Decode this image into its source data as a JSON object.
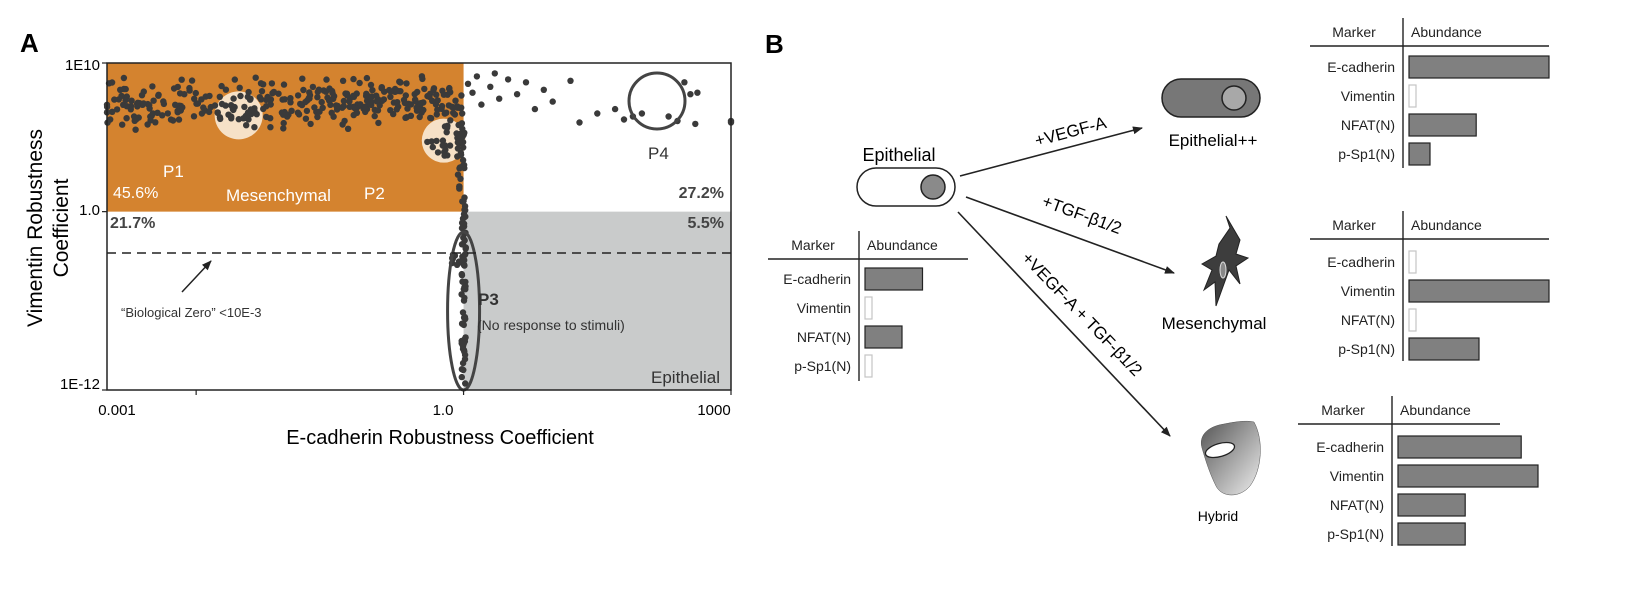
{
  "panel_a": {
    "label": "A",
    "ylabel_line1": "Vimentin Robustness",
    "ylabel_line2": "Coefficient",
    "xlabel": "E-cadherin Robustness Coefficient",
    "y_ticks": [
      "1E10",
      "1.0",
      "1E-12"
    ],
    "x_ticks": [
      "0.001",
      "1.0",
      "1000"
    ],
    "regions": {
      "mesenchymal": {
        "label": "Mesenchymal",
        "percent": "45.6%",
        "color": "#d4832f"
      },
      "epithelial": {
        "label": "Epithelial",
        "percent": "5.5%",
        "color": "#c9cbcb"
      },
      "upper_right_percent": "27.2%",
      "lower_left_percent": "21.7%"
    },
    "populations": {
      "p1": "P1",
      "p2": "P2",
      "p3": "P3",
      "p3_note": "(No response to stimuli)",
      "p4": "P4"
    },
    "bio_zero_label": "“Biological Zero” <10E-3"
  },
  "panel_b": {
    "label": "B",
    "source": {
      "label": "Epithelial",
      "table": {
        "header_marker": "Marker",
        "header_abundance": "Abundance",
        "rows": [
          {
            "marker": "E-cadherin",
            "value": 0.42
          },
          {
            "marker": "Vimentin",
            "value": 0.04
          },
          {
            "marker": "NFAT(N)",
            "value": 0.27
          },
          {
            "marker": "p-Sp1(N)",
            "value": 0.04
          }
        ]
      }
    },
    "branches": [
      {
        "arrow_label": "+VEGF-A",
        "state": "Epithelial++",
        "table": {
          "header_marker": "Marker",
          "header_abundance": "Abundance",
          "rows": [
            {
              "marker": "E-cadherin",
              "value": 1.0
            },
            {
              "marker": "Vimentin",
              "value": 0.04
            },
            {
              "marker": "NFAT(N)",
              "value": 0.48
            },
            {
              "marker": "p-Sp1(N)",
              "value": 0.15
            }
          ]
        }
      },
      {
        "arrow_label": "+TGF-β1/2",
        "state": "Mesenchymal",
        "table": {
          "header_marker": "Marker",
          "header_abundance": "Abundance",
          "rows": [
            {
              "marker": "E-cadherin",
              "value": 0.04
            },
            {
              "marker": "Vimentin",
              "value": 1.0
            },
            {
              "marker": "NFAT(N)",
              "value": 0.04
            },
            {
              "marker": "p-Sp1(N)",
              "value": 0.5
            }
          ]
        }
      },
      {
        "arrow_label": "+VEGF-A + TGF-β1/2",
        "state": "Hybrid",
        "table": {
          "header_marker": "Marker",
          "header_abundance": "Abundance",
          "rows": [
            {
              "marker": "E-cadherin",
              "value": 0.88
            },
            {
              "marker": "Vimentin",
              "value": 1.0
            },
            {
              "marker": "NFAT(N)",
              "value": 0.48
            },
            {
              "marker": "p-Sp1(N)",
              "value": 0.48
            }
          ]
        }
      }
    ]
  },
  "chart_data": [
    {
      "type": "scatter",
      "title": "",
      "xlabel": "E-cadherin Robustness Coefficient",
      "ylabel": "Vimentin Robustness Coefficient",
      "x_scale": "log",
      "y_scale": "log",
      "xlim": [
        0.0001,
        1000
      ],
      "ylim": [
        1e-12,
        10000000000.0
      ],
      "grid": false,
      "region_percentages": {
        "mesenchymal_upper_left": "45.6%",
        "upper_right": "27.2%",
        "lower_left": "21.7%",
        "epithelial_lower_right": "5.5%"
      },
      "series": [
        {
          "name": "P1",
          "points": [
            [
              0.003,
              3000000.0
            ],
            [
              0.0025,
              10000000.0
            ],
            [
              0.004,
              500000.0
            ],
            [
              0.002,
              2000000.0
            ],
            [
              0.005,
              8000000.0
            ]
          ]
        },
        {
          "name": "P2",
          "points": [
            [
              0.5,
              100000.0
            ],
            [
              0.6,
              50000.0
            ],
            [
              0.7,
              200000.0
            ],
            [
              0.8,
              80000.0
            ]
          ]
        },
        {
          "name": "P3",
          "points": [
            [
              1.0,
              0.01
            ],
            [
              1.0,
              0.0001
            ],
            [
              1.0,
              1e-06
            ],
            [
              1.0,
              1e-08
            ],
            [
              1.0,
              1e-10
            ],
            [
              1.0,
              1e-11
            ]
          ]
        },
        {
          "name": "P4",
          "points": [
            [
              300,
              500000000.0
            ],
            [
              350,
              80000000.0
            ],
            [
              420,
              100000000.0
            ]
          ]
        }
      ],
      "annotations": [
        "“Biological Zero” <10E-3",
        "Mesenchymal",
        "Epithelial"
      ]
    },
    {
      "type": "bar",
      "orientation": "horizontal",
      "title": "Epithelial",
      "categories": [
        "E-cadherin",
        "Vimentin",
        "NFAT(N)",
        "p-Sp1(N)"
      ],
      "values": [
        0.42,
        0.04,
        0.27,
        0.04
      ],
      "xlabel": "Abundance",
      "ylabel": "Marker"
    },
    {
      "type": "bar",
      "orientation": "horizontal",
      "title": "Epithelial++",
      "categories": [
        "E-cadherin",
        "Vimentin",
        "NFAT(N)",
        "p-Sp1(N)"
      ],
      "values": [
        1.0,
        0.04,
        0.48,
        0.15
      ],
      "xlabel": "Abundance",
      "ylabel": "Marker"
    },
    {
      "type": "bar",
      "orientation": "horizontal",
      "title": "Mesenchymal",
      "categories": [
        "E-cadherin",
        "Vimentin",
        "NFAT(N)",
        "p-Sp1(N)"
      ],
      "values": [
        0.04,
        1.0,
        0.04,
        0.5
      ],
      "xlabel": "Abundance",
      "ylabel": "Marker"
    },
    {
      "type": "bar",
      "orientation": "horizontal",
      "title": "Hybrid",
      "categories": [
        "E-cadherin",
        "Vimentin",
        "NFAT(N)",
        "p-Sp1(N)"
      ],
      "values": [
        0.88,
        1.0,
        0.48,
        0.48
      ],
      "xlabel": "Abundance",
      "ylabel": "Marker"
    }
  ]
}
